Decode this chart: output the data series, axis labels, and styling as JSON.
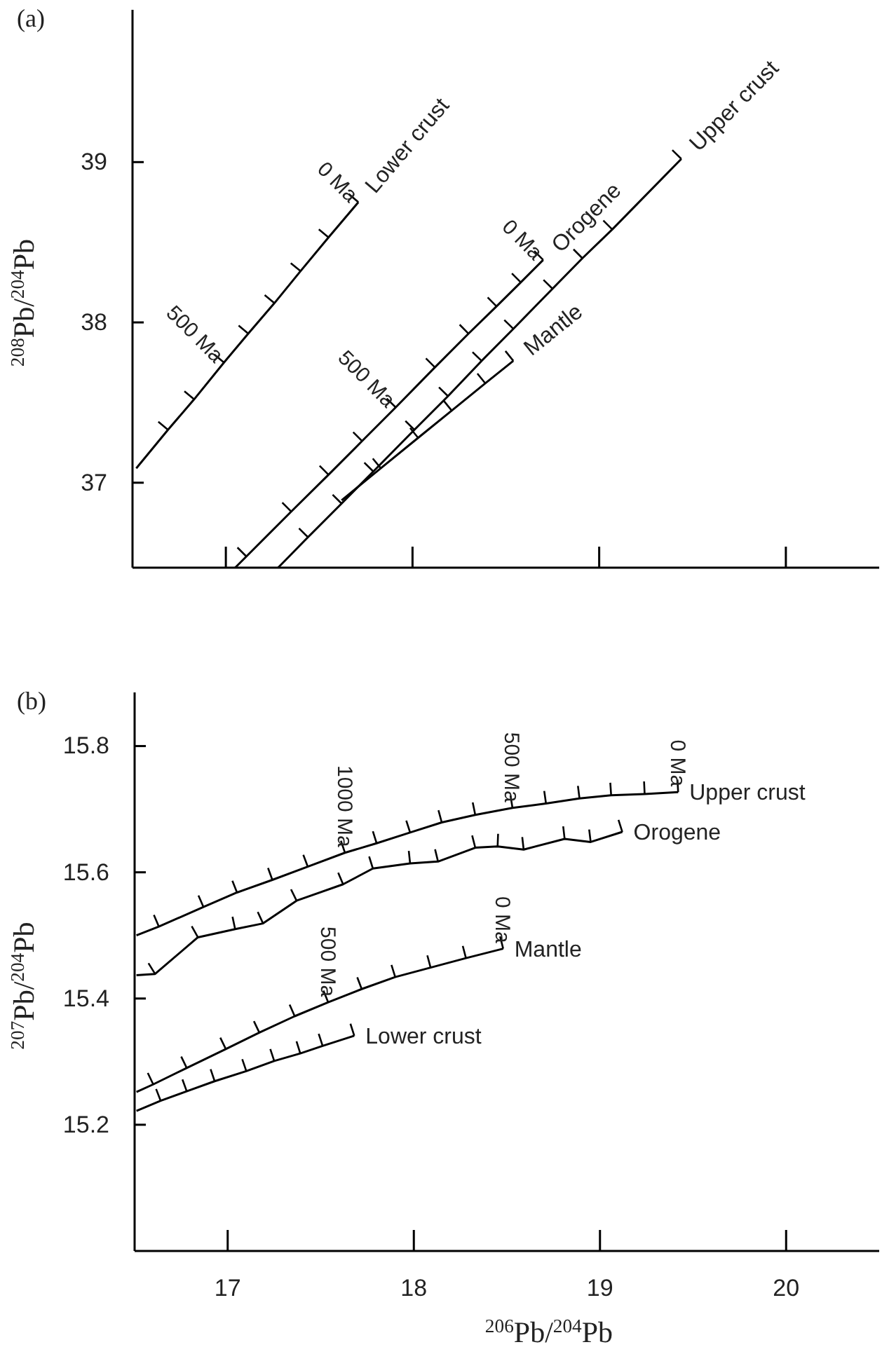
{
  "chart_data": [
    {
      "type": "line",
      "title": "(a)",
      "ylabel": "$^{208}$Pb/$^{204}$Pb",
      "xlim": [
        16.5,
        20.5
      ],
      "ylim": [
        36.47,
        39.95
      ],
      "xticks": [
        17,
        18,
        19,
        20
      ],
      "yticks": [
        37,
        38,
        39
      ],
      "tick_labels": "y",
      "series": [
        {
          "name": "Lower crust",
          "color": "#000000",
          "x": [
            16.52,
            16.69,
            16.83,
            16.99,
            17.12,
            17.26,
            17.4,
            17.55,
            17.71
          ],
          "values": [
            37.09,
            37.33,
            37.52,
            37.75,
            37.93,
            38.12,
            38.32,
            38.53,
            38.75
          ]
        },
        {
          "name": "Orogene",
          "color": "#000000",
          "x": [
            17.05,
            17.11,
            17.35,
            17.55,
            17.73,
            17.91,
            18.12,
            18.3,
            18.45,
            18.58,
            18.7
          ],
          "values": [
            36.47,
            36.54,
            36.82,
            37.05,
            37.26,
            37.47,
            37.72,
            37.93,
            38.1,
            38.25,
            38.39
          ]
        },
        {
          "name": "Upper crust",
          "color": "#000000",
          "x": [
            17.28,
            17.44,
            17.62,
            17.79,
            18.01,
            18.19,
            18.37,
            18.54,
            18.75,
            18.91,
            19.07,
            19.44
          ],
          "values": [
            36.47,
            36.66,
            36.87,
            37.07,
            37.33,
            37.54,
            37.76,
            37.96,
            38.21,
            38.4,
            38.58,
            39.02
          ]
        },
        {
          "name": "Mantle",
          "color": "#000000",
          "x": [
            17.62,
            17.83,
            18.03,
            18.21,
            18.39,
            18.54
          ],
          "values": [
            36.89,
            37.09,
            37.28,
            37.45,
            37.62,
            37.76
          ]
        }
      ],
      "annotations": [
        {
          "text": "500 Ma",
          "x": 16.99,
          "y": 37.75
        },
        {
          "text": "0 Ma",
          "x": 17.71,
          "y": 38.75
        },
        {
          "text": "500 Ma",
          "x": 17.91,
          "y": 37.47
        },
        {
          "text": "0 Ma",
          "x": 18.7,
          "y": 38.39
        }
      ]
    },
    {
      "type": "line",
      "title": "(b)",
      "xlabel": "$^{206}$Pb/$^{204}$Pb",
      "ylabel": "$^{207}$Pb/$^{204}$Pb",
      "xlim": [
        16.5,
        20.5
      ],
      "ylim": [
        15.0,
        15.885
      ],
      "xticks": [
        17,
        18,
        19,
        20
      ],
      "yticks": [
        15.2,
        15.4,
        15.6,
        15.8
      ],
      "legend": "right",
      "series": [
        {
          "name": "Upper crust",
          "color": "#000000",
          "x": [
            16.51,
            16.63,
            16.87,
            17.05,
            17.24,
            17.43,
            17.63,
            17.8,
            17.98,
            18.15,
            18.33,
            18.53,
            18.71,
            18.89,
            19.06,
            19.24,
            19.42
          ],
          "values": [
            15.5,
            15.514,
            15.545,
            15.568,
            15.588,
            15.609,
            15.631,
            15.646,
            15.663,
            15.679,
            15.691,
            15.702,
            15.709,
            15.717,
            15.722,
            15.724,
            15.727
          ]
        },
        {
          "name": "Orogene",
          "color": "#000000",
          "x": [
            16.51,
            16.61,
            16.84,
            17.04,
            17.19,
            17.37,
            17.62,
            17.78,
            17.98,
            18.13,
            18.33,
            18.45,
            18.59,
            18.81,
            18.95,
            19.12
          ],
          "values": [
            15.437,
            15.439,
            15.497,
            15.51,
            15.519,
            15.555,
            15.581,
            15.606,
            15.614,
            15.617,
            15.639,
            15.641,
            15.636,
            15.653,
            15.648,
            15.664
          ]
        },
        {
          "name": "Mantle",
          "color": "#000000",
          "x": [
            16.51,
            16.6,
            16.78,
            16.99,
            17.17,
            17.36,
            17.54,
            17.72,
            17.9,
            18.09,
            18.28,
            18.48
          ],
          "values": [
            15.252,
            15.264,
            15.29,
            15.32,
            15.346,
            15.372,
            15.394,
            15.415,
            15.434,
            15.449,
            15.464,
            15.479
          ]
        },
        {
          "name": "Lower crust",
          "color": "#000000",
          "x": [
            16.51,
            16.64,
            16.78,
            16.93,
            17.1,
            17.25,
            17.39,
            17.51,
            17.68
          ],
          "values": [
            15.222,
            15.238,
            15.253,
            15.269,
            15.285,
            15.301,
            15.313,
            15.325,
            15.341
          ]
        }
      ],
      "annotations": [
        {
          "text": "1000 Ma",
          "x": 17.63,
          "y": 15.631
        },
        {
          "text": "500 Ma",
          "x": 18.53,
          "y": 15.702
        },
        {
          "text": "0 Ma",
          "x": 19.42,
          "y": 15.727
        },
        {
          "text": "500 Ma",
          "x": 17.54,
          "y": 15.394
        },
        {
          "text": "0 Ma",
          "x": 18.48,
          "y": 15.479
        }
      ]
    }
  ]
}
